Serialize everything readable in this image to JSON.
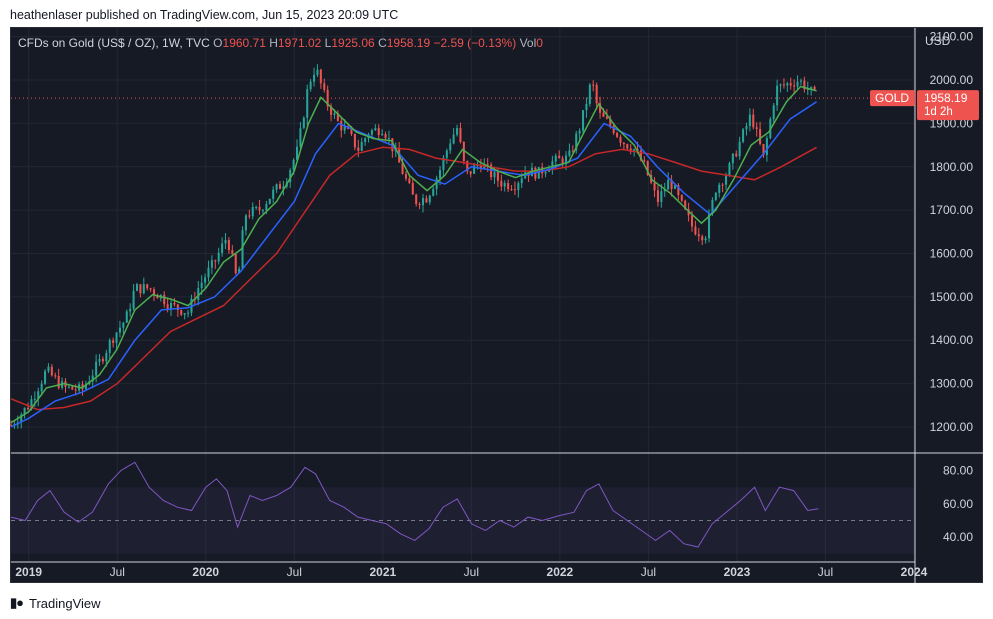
{
  "publish_line": "heathenlaser published on TradingView.com, Jun 15, 2023 20:09 UTC",
  "legend": {
    "symbol": "CFDs on Gold (US$ / OZ), 1W, TVC",
    "open_label": "O",
    "open": "1960.71",
    "high_label": "H",
    "high": "1971.02",
    "low_label": "L",
    "low": "1925.06",
    "close_label": "C",
    "close": "1958.19",
    "change": "−2.59 (−0.13%)",
    "vol_label": "Vol",
    "vol": "0"
  },
  "footer": {
    "brand": "TradingView"
  },
  "colors": {
    "background": "#161a25",
    "up": "#26a69a",
    "down": "#ef5350",
    "ma_fast": "#4caf50",
    "ma_mid": "#2962ff",
    "ma_slow": "#c62828",
    "rsi": "#7e57c2",
    "price_tag": "#ef5350"
  },
  "chart_data": [
    {
      "type": "candlestick",
      "title": "CFDs on Gold (US$ / OZ), 1W, TVC",
      "currency_label": "USD",
      "ylim": [
        1140,
        2120
      ],
      "y_ticks": [
        "1200.00",
        "1300.00",
        "1400.00",
        "1500.00",
        "1600.00",
        "1700.00",
        "1800.00",
        "1900.00",
        "2000.00",
        "2100.00"
      ],
      "x_ticks": [
        {
          "label": "2019",
          "t": 2019.0
        },
        {
          "label": "Jul",
          "t": 2019.5
        },
        {
          "label": "2020",
          "t": 2020.0
        },
        {
          "label": "Jul",
          "t": 2020.5
        },
        {
          "label": "2021",
          "t": 2021.0
        },
        {
          "label": "Jul",
          "t": 2021.5
        },
        {
          "label": "2022",
          "t": 2022.0
        },
        {
          "label": "Jul",
          "t": 2022.5
        },
        {
          "label": "2023",
          "t": 2023.0
        },
        {
          "label": "Jul",
          "t": 2023.5
        },
        {
          "label": "2024",
          "t": 2024.0
        }
      ],
      "x_range": [
        2018.9,
        2024.0
      ],
      "price_series": [
        [
          2018.9,
          1205
        ],
        [
          2019.0,
          1250
        ],
        [
          2019.1,
          1330
        ],
        [
          2019.2,
          1290
        ],
        [
          2019.3,
          1285
        ],
        [
          2019.4,
          1350
        ],
        [
          2019.48,
          1410
        ],
        [
          2019.55,
          1450
        ],
        [
          2019.6,
          1520
        ],
        [
          2019.68,
          1520
        ],
        [
          2019.75,
          1500
        ],
        [
          2019.8,
          1480
        ],
        [
          2019.9,
          1465
        ],
        [
          2019.95,
          1515
        ],
        [
          2020.0,
          1550
        ],
        [
          2020.05,
          1580
        ],
        [
          2020.12,
          1640
        ],
        [
          2020.18,
          1530
        ],
        [
          2020.22,
          1690
        ],
        [
          2020.3,
          1700
        ],
        [
          2020.38,
          1740
        ],
        [
          2020.45,
          1770
        ],
        [
          2020.52,
          1840
        ],
        [
          2020.58,
          1990
        ],
        [
          2020.62,
          2030
        ],
        [
          2020.68,
          1950
        ],
        [
          2020.75,
          1900
        ],
        [
          2020.8,
          1880
        ],
        [
          2020.86,
          1840
        ],
        [
          2020.92,
          1880
        ],
        [
          2021.0,
          1890
        ],
        [
          2021.06,
          1840
        ],
        [
          2021.12,
          1780
        ],
        [
          2021.18,
          1720
        ],
        [
          2021.25,
          1730
        ],
        [
          2021.32,
          1790
        ],
        [
          2021.38,
          1860
        ],
        [
          2021.42,
          1890
        ],
        [
          2021.47,
          1780
        ],
        [
          2021.55,
          1810
        ],
        [
          2021.62,
          1780
        ],
        [
          2021.68,
          1760
        ],
        [
          2021.75,
          1760
        ],
        [
          2021.8,
          1790
        ],
        [
          2021.88,
          1785
        ],
        [
          2021.95,
          1810
        ],
        [
          2022.05,
          1820
        ],
        [
          2022.12,
          1900
        ],
        [
          2022.18,
          2000
        ],
        [
          2022.22,
          1920
        ],
        [
          2022.3,
          1890
        ],
        [
          2022.35,
          1860
        ],
        [
          2022.42,
          1840
        ],
        [
          2022.48,
          1800
        ],
        [
          2022.55,
          1720
        ],
        [
          2022.62,
          1770
        ],
        [
          2022.7,
          1700
        ],
        [
          2022.75,
          1660
        ],
        [
          2022.82,
          1640
        ],
        [
          2022.88,
          1750
        ],
        [
          2022.95,
          1790
        ],
        [
          2023.02,
          1860
        ],
        [
          2023.08,
          1920
        ],
        [
          2023.15,
          1820
        ],
        [
          2023.22,
          1980
        ],
        [
          2023.28,
          1990
        ],
        [
          2023.35,
          2000
        ],
        [
          2023.4,
          1980
        ],
        [
          2023.45,
          1960
        ]
      ],
      "ma_fast": [
        [
          2018.9,
          1210
        ],
        [
          2019.0,
          1235
        ],
        [
          2019.1,
          1290
        ],
        [
          2019.2,
          1300
        ],
        [
          2019.3,
          1290
        ],
        [
          2019.4,
          1320
        ],
        [
          2019.5,
          1380
        ],
        [
          2019.6,
          1470
        ],
        [
          2019.7,
          1505
        ],
        [
          2019.8,
          1495
        ],
        [
          2019.9,
          1480
        ],
        [
          2020.0,
          1520
        ],
        [
          2020.1,
          1580
        ],
        [
          2020.2,
          1610
        ],
        [
          2020.3,
          1680
        ],
        [
          2020.4,
          1720
        ],
        [
          2020.5,
          1790
        ],
        [
          2020.58,
          1900
        ],
        [
          2020.65,
          1960
        ],
        [
          2020.75,
          1920
        ],
        [
          2020.85,
          1880
        ],
        [
          2020.95,
          1865
        ],
        [
          2021.05,
          1860
        ],
        [
          2021.15,
          1780
        ],
        [
          2021.25,
          1745
        ],
        [
          2021.35,
          1780
        ],
        [
          2021.45,
          1840
        ],
        [
          2021.55,
          1810
        ],
        [
          2021.65,
          1790
        ],
        [
          2021.75,
          1775
        ],
        [
          2021.85,
          1790
        ],
        [
          2021.95,
          1800
        ],
        [
          2022.05,
          1810
        ],
        [
          2022.15,
          1890
        ],
        [
          2022.22,
          1945
        ],
        [
          2022.32,
          1890
        ],
        [
          2022.42,
          1850
        ],
        [
          2022.52,
          1770
        ],
        [
          2022.62,
          1740
        ],
        [
          2022.72,
          1700
        ],
        [
          2022.8,
          1670
        ],
        [
          2022.88,
          1700
        ],
        [
          2022.98,
          1770
        ],
        [
          2023.08,
          1850
        ],
        [
          2023.18,
          1880
        ],
        [
          2023.28,
          1950
        ],
        [
          2023.36,
          1985
        ],
        [
          2023.45,
          1975
        ]
      ],
      "ma_mid": [
        [
          2018.9,
          1200
        ],
        [
          2019.0,
          1220
        ],
        [
          2019.15,
          1260
        ],
        [
          2019.3,
          1280
        ],
        [
          2019.45,
          1310
        ],
        [
          2019.6,
          1400
        ],
        [
          2019.75,
          1470
        ],
        [
          2019.9,
          1475
        ],
        [
          2020.05,
          1500
        ],
        [
          2020.2,
          1560
        ],
        [
          2020.35,
          1640
        ],
        [
          2020.5,
          1720
        ],
        [
          2020.62,
          1830
        ],
        [
          2020.75,
          1900
        ],
        [
          2020.9,
          1875
        ],
        [
          2021.05,
          1850
        ],
        [
          2021.2,
          1780
        ],
        [
          2021.35,
          1760
        ],
        [
          2021.5,
          1800
        ],
        [
          2021.65,
          1790
        ],
        [
          2021.8,
          1780
        ],
        [
          2021.95,
          1795
        ],
        [
          2022.1,
          1820
        ],
        [
          2022.25,
          1900
        ],
        [
          2022.4,
          1870
        ],
        [
          2022.55,
          1800
        ],
        [
          2022.7,
          1740
        ],
        [
          2022.85,
          1690
        ],
        [
          2023.0,
          1760
        ],
        [
          2023.15,
          1830
        ],
        [
          2023.3,
          1910
        ],
        [
          2023.45,
          1950
        ]
      ],
      "ma_slow": [
        [
          2018.9,
          1265
        ],
        [
          2019.05,
          1240
        ],
        [
          2019.2,
          1245
        ],
        [
          2019.35,
          1260
        ],
        [
          2019.5,
          1300
        ],
        [
          2019.65,
          1360
        ],
        [
          2019.8,
          1420
        ],
        [
          2019.95,
          1450
        ],
        [
          2020.1,
          1480
        ],
        [
          2020.25,
          1540
        ],
        [
          2020.4,
          1600
        ],
        [
          2020.55,
          1690
        ],
        [
          2020.7,
          1780
        ],
        [
          2020.85,
          1830
        ],
        [
          2021.0,
          1845
        ],
        [
          2021.15,
          1840
        ],
        [
          2021.3,
          1820
        ],
        [
          2021.45,
          1810
        ],
        [
          2021.6,
          1800
        ],
        [
          2021.75,
          1790
        ],
        [
          2021.9,
          1790
        ],
        [
          2022.05,
          1800
        ],
        [
          2022.2,
          1830
        ],
        [
          2022.35,
          1840
        ],
        [
          2022.5,
          1830
        ],
        [
          2022.65,
          1810
        ],
        [
          2022.8,
          1790
        ],
        [
          2022.95,
          1780
        ],
        [
          2023.1,
          1770
        ],
        [
          2023.25,
          1800
        ],
        [
          2023.45,
          1845
        ]
      ],
      "last_price_tag": {
        "symbol": "GOLD",
        "value": "1958.19",
        "countdown": "1d 2h",
        "value_num": 1958.19
      }
    },
    {
      "type": "line",
      "title": "",
      "ylim": [
        25,
        90
      ],
      "y_ticks": [
        "40.00",
        "60.00",
        "80.00"
      ],
      "band": [
        30,
        70
      ],
      "midline": 50,
      "series": [
        {
          "values": [
            [
              2018.9,
              52
            ],
            [
              2018.98,
              50
            ],
            [
              2019.05,
              62
            ],
            [
              2019.12,
              68
            ],
            [
              2019.2,
              55
            ],
            [
              2019.28,
              49
            ],
            [
              2019.36,
              55
            ],
            [
              2019.45,
              72
            ],
            [
              2019.52,
              80
            ],
            [
              2019.6,
              85
            ],
            [
              2019.68,
              70
            ],
            [
              2019.76,
              62
            ],
            [
              2019.84,
              58
            ],
            [
              2019.92,
              56
            ],
            [
              2020.0,
              70
            ],
            [
              2020.06,
              75
            ],
            [
              2020.12,
              68
            ],
            [
              2020.18,
              46
            ],
            [
              2020.25,
              65
            ],
            [
              2020.32,
              62
            ],
            [
              2020.4,
              65
            ],
            [
              2020.48,
              70
            ],
            [
              2020.56,
              82
            ],
            [
              2020.62,
              78
            ],
            [
              2020.7,
              62
            ],
            [
              2020.78,
              58
            ],
            [
              2020.86,
              52
            ],
            [
              2020.94,
              50
            ],
            [
              2021.02,
              48
            ],
            [
              2021.1,
              42
            ],
            [
              2021.18,
              38
            ],
            [
              2021.26,
              45
            ],
            [
              2021.34,
              58
            ],
            [
              2021.42,
              63
            ],
            [
              2021.5,
              48
            ],
            [
              2021.58,
              44
            ],
            [
              2021.66,
              50
            ],
            [
              2021.74,
              46
            ],
            [
              2021.82,
              52
            ],
            [
              2021.9,
              50
            ],
            [
              2022.0,
              53
            ],
            [
              2022.08,
              55
            ],
            [
              2022.15,
              68
            ],
            [
              2022.22,
              72
            ],
            [
              2022.3,
              56
            ],
            [
              2022.38,
              50
            ],
            [
              2022.46,
              44
            ],
            [
              2022.54,
              38
            ],
            [
              2022.62,
              44
            ],
            [
              2022.7,
              36
            ],
            [
              2022.78,
              34
            ],
            [
              2022.86,
              48
            ],
            [
              2022.94,
              55
            ],
            [
              2023.02,
              62
            ],
            [
              2023.1,
              70
            ],
            [
              2023.16,
              56
            ],
            [
              2023.24,
              70
            ],
            [
              2023.32,
              68
            ],
            [
              2023.4,
              56
            ],
            [
              2023.46,
              57
            ]
          ]
        }
      ]
    }
  ]
}
